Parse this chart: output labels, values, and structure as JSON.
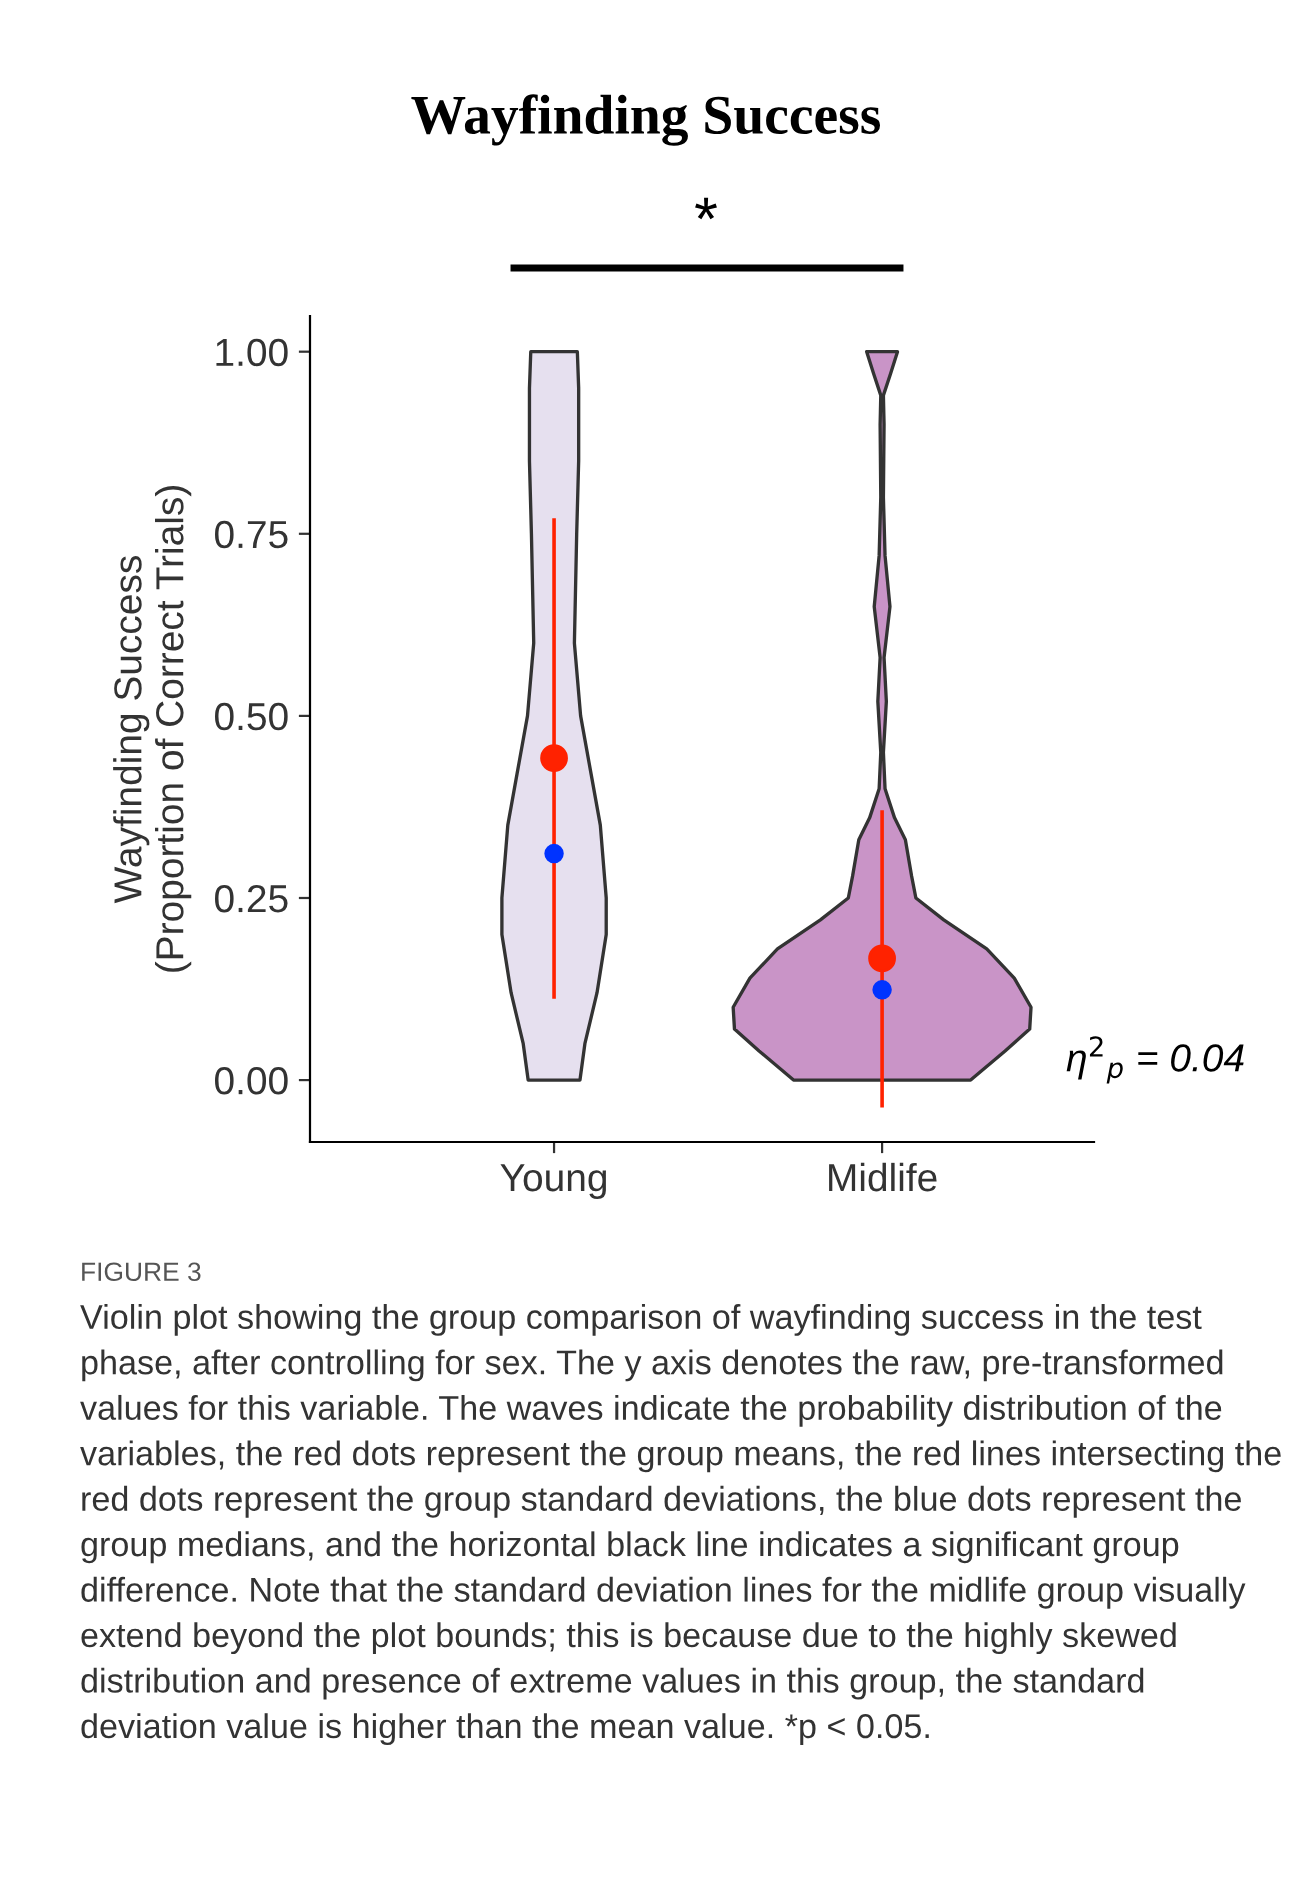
{
  "chart_data": {
    "type": "scatter",
    "title": "Wayfinding Success",
    "categories": [
      "Young",
      "Midlife"
    ],
    "ylabel": "Wayfinding Success\n(Proportion of Correct Trials)",
    "ylim": [
      -0.085,
      1.049
    ],
    "yticks": [
      {
        "value": 0,
        "label": "0.00"
      },
      {
        "value": 0.25,
        "label": "0.25"
      },
      {
        "value": 0.5,
        "label": "0.50"
      },
      {
        "value": 0.75,
        "label": "0.75"
      },
      {
        "value": 1,
        "label": "1.00"
      }
    ],
    "grid": false,
    "legend": false,
    "series": [
      {
        "color": "#ff2200",
        "marker": "circle",
        "values": [
          0.442,
          0.167
        ],
        "errors": [
          [
            0.114,
            0.769
          ],
          [
            -0.035,
            0.368
          ]
        ]
      },
      {
        "color": "#0033ff",
        "marker": "circle",
        "values": [
          0.311,
          0.124
        ]
      }
    ],
    "annotations": [
      "*",
      "η$^{2}$$_{p}$ = 0.04",
      "FIGURE 3",
      "Violin plot showing the group comparison of wayfinding success in the test phase, after controlling for sex. The y axis denotes the raw, pre-transformed values for this variable. The waves indicate the probability distribution of the variables, the red dots represent the group means, the red lines intersecting the red dots represent the group standard deviations, the blue dots represent the group medians, and the horizontal black line indicates a significant group difference. Note that the standard deviation lines for the midlife group visually extend beyond the plot bounds; this is because due to the highly skewed distribution and presence of extreme values in this group, the standard deviation value is higher than the mean value. *p < 0.05."
    ]
  }
}
